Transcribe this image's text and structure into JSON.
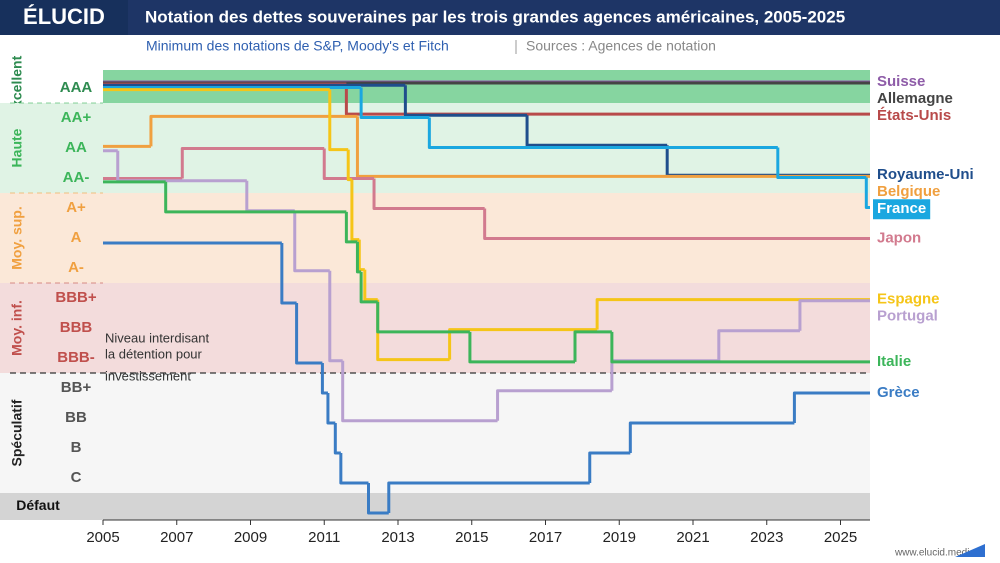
{
  "chart_data": {
    "type": "step",
    "logo": "ÉLUCID",
    "title": "Notation des dettes souveraines par les trois grandes agences américaines, 2005-2025",
    "subtitle": "Minimum des notations de S&P, Moody's et Fitch",
    "source": "Sources : Agences de notation",
    "footer": "www.elucid.media",
    "xlim": [
      2005,
      2025.8
    ],
    "xticks": [
      2005,
      2007,
      2009,
      2011,
      2013,
      2015,
      2017,
      2019,
      2021,
      2023,
      2025
    ],
    "ylim": [
      5.6,
      20.6
    ],
    "yticks": [
      {
        "value": 20,
        "label": "AAA"
      },
      {
        "value": 19,
        "label": "AA+"
      },
      {
        "value": 18,
        "label": "AA"
      },
      {
        "value": 17,
        "label": "AA-"
      },
      {
        "value": 16,
        "label": "A+"
      },
      {
        "value": 15,
        "label": "A"
      },
      {
        "value": 14,
        "label": "A-"
      },
      {
        "value": 13,
        "label": "BBB+"
      },
      {
        "value": 12,
        "label": "BBB"
      },
      {
        "value": 11,
        "label": "BBB-"
      },
      {
        "value": 10,
        "label": "BB+"
      },
      {
        "value": 9,
        "label": "BB"
      },
      {
        "value": 8,
        "label": "B"
      },
      {
        "value": 7,
        "label": "C"
      },
      {
        "value": 6,
        "label": "Défaut"
      }
    ],
    "zones": [
      {
        "label": "Excellent",
        "color": "#2e8b50",
        "fill": "#86d5a0"
      },
      {
        "label": "Haute",
        "color": "#3cb55a",
        "fill": "#e0f3e5"
      },
      {
        "label": "Moy. sup.",
        "color": "#f0a040",
        "fill": "#fbe8d8"
      },
      {
        "label": "Moy. inf.",
        "color": "#c0504d",
        "fill": "#f3dcdc"
      },
      {
        "label": "Spéculatif",
        "color": "#222222",
        "fill": "#f6f6f6"
      },
      {
        "label": "Défaut",
        "color": "#111111",
        "fill": "#d4d4d4"
      }
    ],
    "threshold": {
      "value": 10.5,
      "label": [
        "Niveau interdisant",
        "la détention pour",
        "investissement"
      ]
    },
    "series": [
      {
        "name": "Suisse",
        "color": "#8e5ca8",
        "x": [
          2005
        ],
        "values": [
          20
        ]
      },
      {
        "name": "Allemagne",
        "color": "#444444",
        "x": [
          2005
        ],
        "values": [
          20
        ]
      },
      {
        "name": "États-Unis",
        "color": "#b84a4a",
        "x": [
          2005,
          2011.6
        ],
        "values": [
          20,
          19
        ]
      },
      {
        "name": "Royaume-Uni",
        "color": "#1f4e8c",
        "x": [
          2005,
          2013.2,
          2016.5,
          2020.3
        ],
        "values": [
          20,
          19,
          18,
          17
        ]
      },
      {
        "name": "Belgique",
        "color": "#f0a040",
        "x": [
          2005,
          2006.3,
          2011.9
        ],
        "values": [
          18,
          19,
          17
        ]
      },
      {
        "name": "France",
        "color": "#1aa7e0",
        "label_style": "box",
        "x": [
          2005,
          2012,
          2013.85,
          2023.3,
          2025.7
        ],
        "values": [
          20,
          19,
          18,
          17,
          16
        ]
      },
      {
        "name": "Japon",
        "color": "#d27a8e",
        "x": [
          2005,
          2007.15,
          2011,
          2012.35,
          2015.35
        ],
        "values": [
          17,
          18,
          17,
          16,
          15
        ]
      },
      {
        "name": "Espagne",
        "color": "#f5c518",
        "x": [
          2005,
          2011.15,
          2011.65,
          2011.75,
          2011.95,
          2012.1,
          2012.45,
          2014.4,
          2018.4
        ],
        "values": [
          20,
          18,
          17,
          15,
          14,
          13,
          11,
          12,
          13
        ]
      },
      {
        "name": "Portugal",
        "color": "#b8a0d0",
        "x": [
          2005,
          2005.4,
          2008.9,
          2010.2,
          2011.15,
          2011.5,
          2015.7,
          2018.8,
          2021.7,
          2023.9
        ],
        "values": [
          18,
          17,
          16,
          14,
          11,
          9,
          10,
          11,
          12,
          13
        ]
      },
      {
        "name": "Italie",
        "color": "#3cb55a",
        "x": [
          2005,
          2006.7,
          2011.6,
          2011.9,
          2012,
          2012.45,
          2014.95,
          2017.8,
          2018.8
        ],
        "values": [
          17,
          16,
          15,
          14,
          13,
          12,
          11,
          12,
          11
        ]
      },
      {
        "name": "Grèce",
        "color": "#3a7cc4",
        "x": [
          2005,
          2009.85,
          2010.25,
          2010.95,
          2011.1,
          2011.3,
          2011.45,
          2012.2,
          2012.75,
          2018.2,
          2019.3,
          2023.75
        ],
        "values": [
          15,
          13,
          11,
          10,
          9,
          8,
          7,
          6,
          7,
          8,
          9,
          10
        ]
      }
    ]
  }
}
